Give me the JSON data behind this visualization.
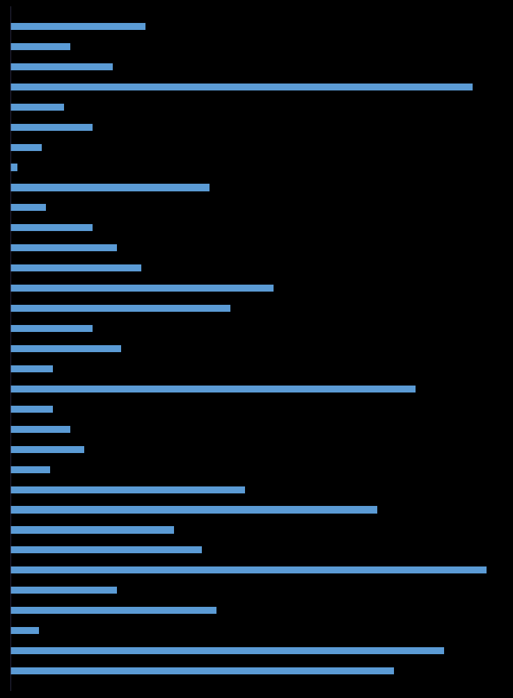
{
  "bar_color": "#5b9bd5",
  "bg_color": "#000000",
  "bar_height": 0.35,
  "xlim_max": 35.0,
  "values": [
    9.5,
    4.2,
    7.2,
    32.5,
    3.8,
    5.8,
    2.2,
    0.5,
    14.0,
    2.5,
    5.8,
    7.5,
    9.2,
    18.5,
    15.5,
    5.8,
    7.8,
    3.0,
    28.5,
    3.0,
    4.2,
    5.2,
    2.8,
    16.5,
    25.8,
    11.5,
    13.5,
    33.5,
    7.5,
    14.5,
    2.0,
    30.5,
    27.0
  ]
}
